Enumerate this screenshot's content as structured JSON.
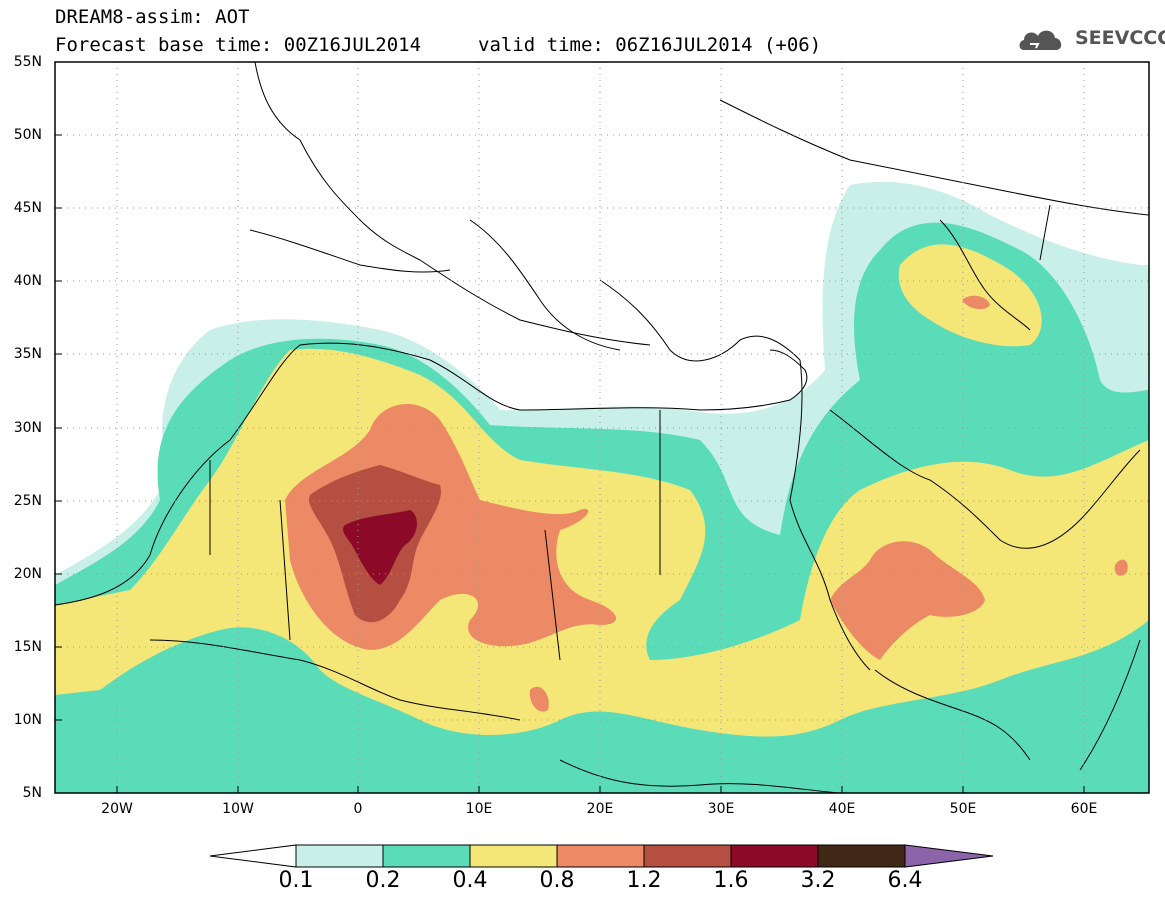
{
  "header": {
    "title": "DREAM8-assim: AOT",
    "base_time": "Forecast base time: 00Z16JUL2014",
    "valid_time": "valid time: 06Z16JUL2014 (+06)",
    "logo_text": "SEEVCCC"
  },
  "map": {
    "variable": "AOT",
    "lon_range": [
      -25,
      65
    ],
    "lat_range": [
      5,
      55
    ],
    "lat_labels": [
      "55N",
      "50N",
      "45N",
      "40N",
      "35N",
      "30N",
      "25N",
      "20N",
      "15N",
      "10N",
      "5N"
    ],
    "lon_labels": [
      "20W",
      "10W",
      "0",
      "10E",
      "20E",
      "30E",
      "40E",
      "50E",
      "60E"
    ]
  },
  "colorbar": {
    "levels": [
      "0.1",
      "0.2",
      "0.4",
      "0.8",
      "1.2",
      "1.6",
      "3.2",
      "6.4"
    ],
    "colors": [
      "#ffffff",
      "#c8f0e8",
      "#5adcb9",
      "#f5e678",
      "#eb8a64",
      "#b44f41",
      "#8c0a28",
      "#412816",
      "#8c64aa"
    ]
  }
}
